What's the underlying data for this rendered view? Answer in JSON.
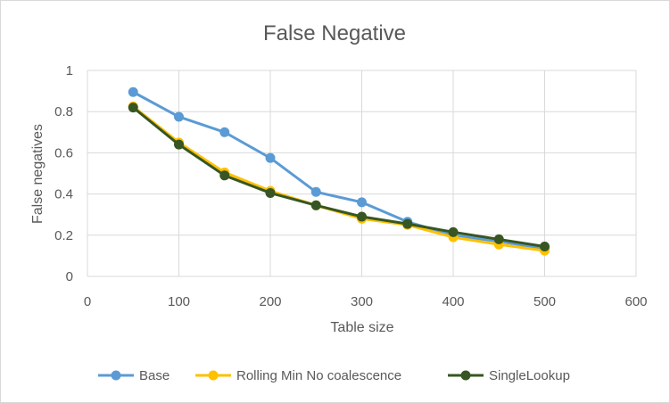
{
  "chart_data": {
    "type": "line",
    "title": "False Negative",
    "xlabel": "Table size",
    "ylabel": "False negatives",
    "xlim": [
      0,
      600
    ],
    "ylim": [
      0,
      1
    ],
    "xticks": [
      0,
      100,
      200,
      300,
      400,
      500,
      600
    ],
    "yticks": [
      0,
      0.2,
      0.4,
      0.6,
      0.8,
      1
    ],
    "grid": true,
    "legend_position": "bottom",
    "x": [
      50,
      100,
      150,
      200,
      250,
      300,
      350,
      400,
      450,
      500
    ],
    "series": [
      {
        "name": "Base",
        "color": "#5b9bd5",
        "values": [
          0.895,
          0.775,
          0.7,
          0.575,
          0.41,
          0.36,
          0.265,
          0.2,
          0.17,
          0.135
        ]
      },
      {
        "name": "Rolling Min No coalescence",
        "color": "#ffc000",
        "values": [
          0.825,
          0.65,
          0.505,
          0.415,
          0.345,
          0.28,
          0.25,
          0.19,
          0.155,
          0.125
        ]
      },
      {
        "name": "SingleLookup",
        "color": "#375623",
        "values": [
          0.82,
          0.64,
          0.49,
          0.405,
          0.345,
          0.29,
          0.255,
          0.215,
          0.18,
          0.145
        ]
      }
    ]
  }
}
